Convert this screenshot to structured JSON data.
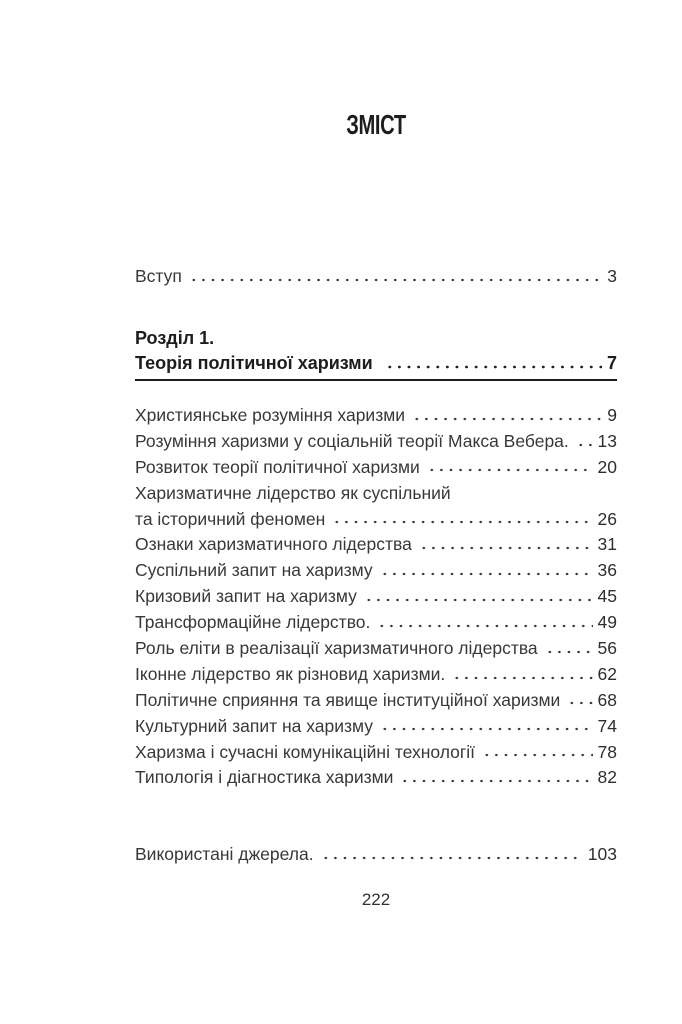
{
  "page": {
    "title": "ЗМІСТ",
    "folio": "222"
  },
  "colors": {
    "background": "#ffffff",
    "body_text": "#383838",
    "heading_text": "#1d1d1d"
  },
  "toc": {
    "intro": {
      "label": "Вступ",
      "page": "3"
    },
    "chapter": {
      "number_line": "Розділ 1.",
      "title": "Теорія політичної харизми",
      "page": "7"
    },
    "entries": [
      {
        "label": "Християнське розуміння харизми",
        "page": "9"
      },
      {
        "label": "Розуміння харизми у соціальній теорії Макса Вебера.",
        "page": "13"
      },
      {
        "label": "Розвиток теорії політичної харизми",
        "page": "20"
      },
      {
        "label": "Харизматичне лідерство як суспільний",
        "page": ""
      },
      {
        "label": "та історичний феномен",
        "page": "26"
      },
      {
        "label": "Ознаки харизматичного лідерства",
        "page": "31"
      },
      {
        "label": "Суспільний запит на харизму",
        "page": "36"
      },
      {
        "label": "Кризовий запит на харизму",
        "page": "45"
      },
      {
        "label": "Трансформаційне лідерство.",
        "page": "49"
      },
      {
        "label": "Роль еліти в реалізації харизматичного лідерства",
        "page": "56"
      },
      {
        "label": "Іконне лідерство як різновид харизми.",
        "page": "62"
      },
      {
        "label": "Політичне сприяння та явище інституційної харизми",
        "page": "68"
      },
      {
        "label": "Культурний запит на харизму",
        "page": "74"
      },
      {
        "label": "Харизма і сучасні комунікаційні технології",
        "page": "78"
      },
      {
        "label": "Типологія і діагностика харизми",
        "page": "82"
      }
    ],
    "sources": {
      "label": "Використані джерела.",
      "page": "103"
    }
  }
}
